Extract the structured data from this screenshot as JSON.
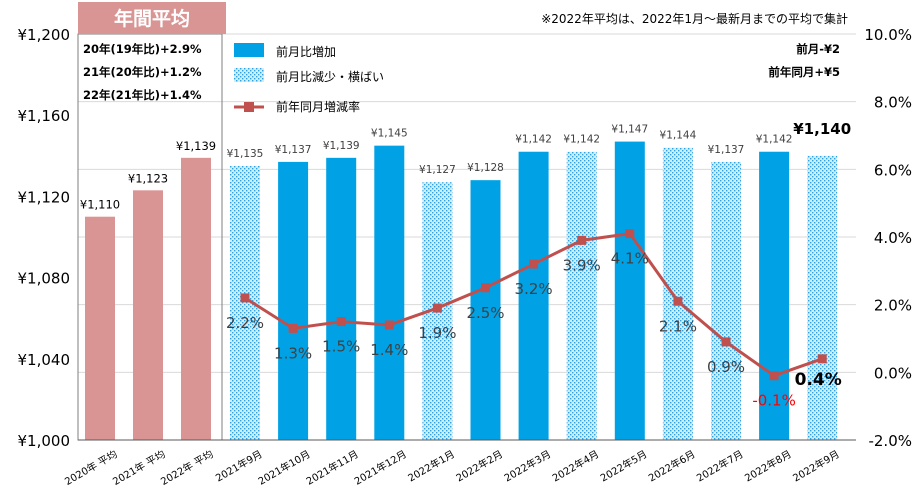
{
  "chart_data": {
    "type": "bar",
    "title": "",
    "note": "※2022年平均は、2022年1月～最新月までの平均で集計",
    "annual_header": "年間平均",
    "annual_notes": [
      "20年(19年比)+2.9%",
      "21年(20年比)+1.2%",
      "22年(21年比)+1.4%"
    ],
    "change_notes": [
      "前月-¥2",
      "前年同月+¥5"
    ],
    "legend": [
      "前月比増加",
      "前月比減少・横ばい",
      "前年同月増減率"
    ],
    "left_axis": {
      "ylim": [
        1000,
        1200
      ],
      "ticks": [
        "¥1,000",
        "¥1,040",
        "¥1,080",
        "¥1,120",
        "¥1,160",
        "¥1,200"
      ]
    },
    "right_axis": {
      "ylim": [
        -2.0,
        10.0
      ],
      "ticks": [
        "-2.0%",
        "0.0%",
        "2.0%",
        "4.0%",
        "6.0%",
        "8.0%",
        "10.0%"
      ]
    },
    "annual": {
      "categories": [
        "2020年 平均",
        "2021年 平均",
        "2022年 平均"
      ],
      "values": [
        1110,
        1123,
        1139
      ],
      "labels": [
        "¥1,110",
        "¥1,123",
        "¥1,139"
      ]
    },
    "monthly": {
      "categories": [
        "2021年9月",
        "2021年10月",
        "2021年11月",
        "2021年12月",
        "2022年1月",
        "2022年2月",
        "2022年3月",
        "2022年4月",
        "2022年5月",
        "2022年6月",
        "2022年7月",
        "2022年8月",
        "2022年9月"
      ],
      "values": [
        1135,
        1137,
        1139,
        1145,
        1127,
        1128,
        1142,
        1142,
        1147,
        1144,
        1137,
        1142,
        1140
      ],
      "labels": [
        "¥1,135",
        "¥1,137",
        "¥1,139",
        "¥1,145",
        "¥1,127",
        "¥1,128",
        "¥1,142",
        "¥1,142",
        "¥1,147",
        "¥1,144",
        "¥1,137",
        "¥1,142",
        "¥1,140"
      ],
      "trend": [
        "decrease",
        "increase",
        "increase",
        "increase",
        "decrease",
        "increase",
        "increase",
        "decrease",
        "increase",
        "decrease",
        "decrease",
        "increase",
        "decrease"
      ],
      "yoy_rate": [
        2.2,
        1.3,
        1.5,
        1.4,
        1.9,
        2.5,
        3.2,
        3.9,
        4.1,
        2.1,
        0.9,
        -0.1,
        0.4
      ],
      "yoy_labels": [
        "2.2%",
        "1.3%",
        "1.5%",
        "1.4%",
        "1.9%",
        "2.5%",
        "3.2%",
        "3.9%",
        "4.1%",
        "2.1%",
        "0.9%",
        "-0.1%",
        "0.4%"
      ]
    },
    "colors": {
      "annual_bar": "#d99594",
      "increase_bar": "#00a2e5",
      "decrease_bar": "#cfe9f8",
      "decrease_dot": "#3aa8e0",
      "line": "#c0504d",
      "annual_header_bg": "#d99594",
      "negative_label": "#ff0000"
    }
  }
}
